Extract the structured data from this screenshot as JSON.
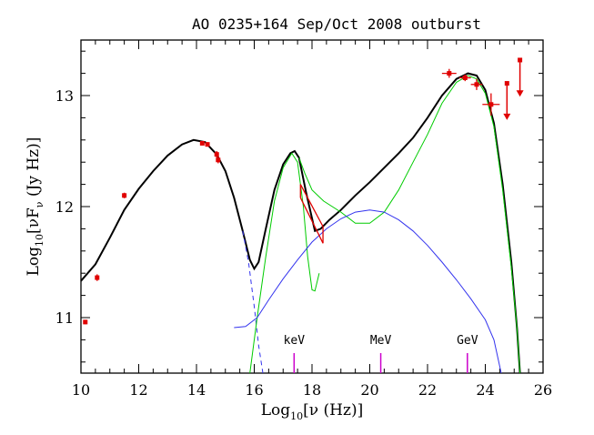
{
  "chart_data": {
    "type": "scatter",
    "title": "AO 0235+164 Sep/Oct 2008 outburst",
    "xlabel": {
      "prefix": "Log",
      "sub": "10",
      "main": "[ν (Hz)]"
    },
    "ylabel": {
      "prefix": "Log",
      "sub": "10",
      "main": "[νF",
      "nu_sub": "ν",
      "suffix": " (Jy Hz)]"
    },
    "xlim": [
      10,
      26
    ],
    "ylim": [
      10.5,
      13.5
    ],
    "x_ticks": [
      10,
      12,
      14,
      16,
      18,
      20,
      22,
      24,
      26
    ],
    "x_tick_labels": [
      "10",
      "12",
      "14",
      "16",
      "18",
      "20",
      "22",
      "24",
      "26"
    ],
    "y_ticks": [
      11,
      12,
      13
    ],
    "y_tick_labels": [
      "11",
      "12",
      "13"
    ],
    "colors": {
      "data": "#e00000",
      "total": "#000000",
      "component": "#00cc00",
      "eic": "#3333ee",
      "band": "#cc00cc"
    },
    "band_markers": [
      {
        "label": "keV",
        "x": 17.38
      },
      {
        "label": "MeV",
        "x": 20.38
      },
      {
        "label": "GeV",
        "x": 23.38
      }
    ],
    "series": [
      {
        "kind": "total-model",
        "points": [
          [
            10,
            11.33
          ],
          [
            10.5,
            11.48
          ],
          [
            11,
            11.72
          ],
          [
            11.5,
            11.97
          ],
          [
            12,
            12.16
          ],
          [
            12.5,
            12.32
          ],
          [
            13,
            12.46
          ],
          [
            13.5,
            12.56
          ],
          [
            13.9,
            12.6
          ],
          [
            14.3,
            12.58
          ],
          [
            14.7,
            12.47
          ],
          [
            15.0,
            12.32
          ],
          [
            15.3,
            12.08
          ],
          [
            15.6,
            11.78
          ],
          [
            15.85,
            11.52
          ],
          [
            16.0,
            11.44
          ],
          [
            16.15,
            11.5
          ],
          [
            16.4,
            11.8
          ],
          [
            16.7,
            12.15
          ],
          [
            17.0,
            12.38
          ],
          [
            17.25,
            12.48
          ],
          [
            17.4,
            12.5
          ],
          [
            17.55,
            12.44
          ],
          [
            17.8,
            12.12
          ],
          [
            18.1,
            11.78
          ],
          [
            18.3,
            11.8
          ],
          [
            18.6,
            11.88
          ],
          [
            19,
            11.97
          ],
          [
            19.5,
            12.1
          ],
          [
            20,
            12.22
          ],
          [
            20.5,
            12.35
          ],
          [
            21,
            12.48
          ],
          [
            21.5,
            12.62
          ],
          [
            22,
            12.8
          ],
          [
            22.5,
            13.0
          ],
          [
            23,
            13.15
          ],
          [
            23.4,
            13.2
          ],
          [
            23.7,
            13.18
          ],
          [
            24.0,
            13.05
          ],
          [
            24.3,
            12.75
          ],
          [
            24.6,
            12.2
          ],
          [
            24.9,
            11.5
          ],
          [
            25.1,
            10.9
          ],
          [
            25.2,
            10.5
          ]
        ]
      },
      {
        "kind": "synchrotron-extension",
        "dashed": true,
        "points": [
          [
            15.6,
            11.78
          ],
          [
            15.8,
            11.5
          ],
          [
            16.0,
            11.1
          ],
          [
            16.15,
            10.75
          ],
          [
            16.3,
            10.5
          ]
        ]
      },
      {
        "kind": "green-component-1",
        "points": [
          [
            15.85,
            10.5
          ],
          [
            16.1,
            11.0
          ],
          [
            16.4,
            11.55
          ],
          [
            16.7,
            12.05
          ],
          [
            17.0,
            12.35
          ],
          [
            17.3,
            12.48
          ],
          [
            17.5,
            12.4
          ],
          [
            17.7,
            12.0
          ],
          [
            17.85,
            11.55
          ],
          [
            18.0,
            11.25
          ],
          [
            18.1,
            11.24
          ],
          [
            18.25,
            11.4
          ]
        ]
      },
      {
        "kind": "green-component-2",
        "points": [
          [
            17.55,
            12.44
          ],
          [
            17.75,
            12.3
          ],
          [
            18.0,
            12.15
          ],
          [
            18.4,
            12.05
          ],
          [
            19.0,
            11.95
          ],
          [
            19.5,
            11.85
          ],
          [
            20.0,
            11.85
          ],
          [
            20.5,
            11.95
          ],
          [
            21.0,
            12.15
          ],
          [
            21.5,
            12.4
          ],
          [
            22,
            12.65
          ],
          [
            22.5,
            12.93
          ],
          [
            23,
            13.12
          ],
          [
            23.4,
            13.18
          ],
          [
            23.7,
            13.15
          ],
          [
            24.0,
            13.02
          ],
          [
            24.3,
            12.72
          ],
          [
            24.6,
            12.15
          ],
          [
            24.9,
            11.45
          ],
          [
            25.1,
            10.9
          ],
          [
            25.2,
            10.5
          ]
        ]
      },
      {
        "kind": "blue-component",
        "points": [
          [
            15.3,
            10.91
          ],
          [
            15.7,
            10.92
          ],
          [
            16.1,
            11.0
          ],
          [
            16.5,
            11.16
          ],
          [
            17.0,
            11.35
          ],
          [
            17.5,
            11.52
          ],
          [
            18.0,
            11.68
          ],
          [
            18.5,
            11.8
          ],
          [
            19.0,
            11.89
          ],
          [
            19.5,
            11.95
          ],
          [
            20.0,
            11.97
          ],
          [
            20.5,
            11.95
          ],
          [
            21.0,
            11.88
          ],
          [
            21.5,
            11.78
          ],
          [
            22.0,
            11.65
          ],
          [
            22.5,
            11.5
          ],
          [
            23.0,
            11.34
          ],
          [
            23.5,
            11.17
          ],
          [
            24.0,
            10.98
          ],
          [
            24.3,
            10.8
          ],
          [
            24.55,
            10.5
          ]
        ]
      },
      {
        "kind": "xray-bowtie",
        "upper": [
          [
            17.6,
            12.2
          ],
          [
            18.38,
            11.82
          ]
        ],
        "lower": [
          [
            17.6,
            12.08
          ],
          [
            18.38,
            11.67
          ]
        ]
      },
      {
        "kind": "data-points",
        "points": [
          {
            "x": 10.15,
            "y": 10.96,
            "xerr": 0,
            "yerr": 0.02
          },
          {
            "x": 10.56,
            "y": 11.36,
            "xerr": 0,
            "yerr": 0.03
          },
          {
            "x": 11.5,
            "y": 12.1,
            "xerr": 0,
            "yerr": 0.025
          },
          {
            "x": 14.2,
            "y": 12.57,
            "xerr": 0.05,
            "yerr": 0.02
          },
          {
            "x": 14.38,
            "y": 12.56,
            "xerr": 0.05,
            "yerr": 0.02
          },
          {
            "x": 14.7,
            "y": 12.47,
            "xerr": 0,
            "yerr": 0.03
          },
          {
            "x": 14.75,
            "y": 12.42,
            "xerr": 0,
            "yerr": 0.03
          },
          {
            "x": 22.75,
            "y": 13.2,
            "xerr": 0.25,
            "yerr": 0.04
          },
          {
            "x": 23.3,
            "y": 13.16,
            "xerr": 0.2,
            "yerr": 0.03
          },
          {
            "x": 23.7,
            "y": 13.1,
            "xerr": 0.2,
            "yerr": 0.05
          },
          {
            "x": 24.2,
            "y": 12.92,
            "xerr": 0.3,
            "yerr": 0.1
          }
        ]
      },
      {
        "kind": "upper-limits",
        "points": [
          {
            "x": 24.75,
            "y": 13.11,
            "arrow_to": 12.78
          },
          {
            "x": 25.2,
            "y": 13.32,
            "arrow_to": 12.99
          }
        ]
      }
    ]
  }
}
